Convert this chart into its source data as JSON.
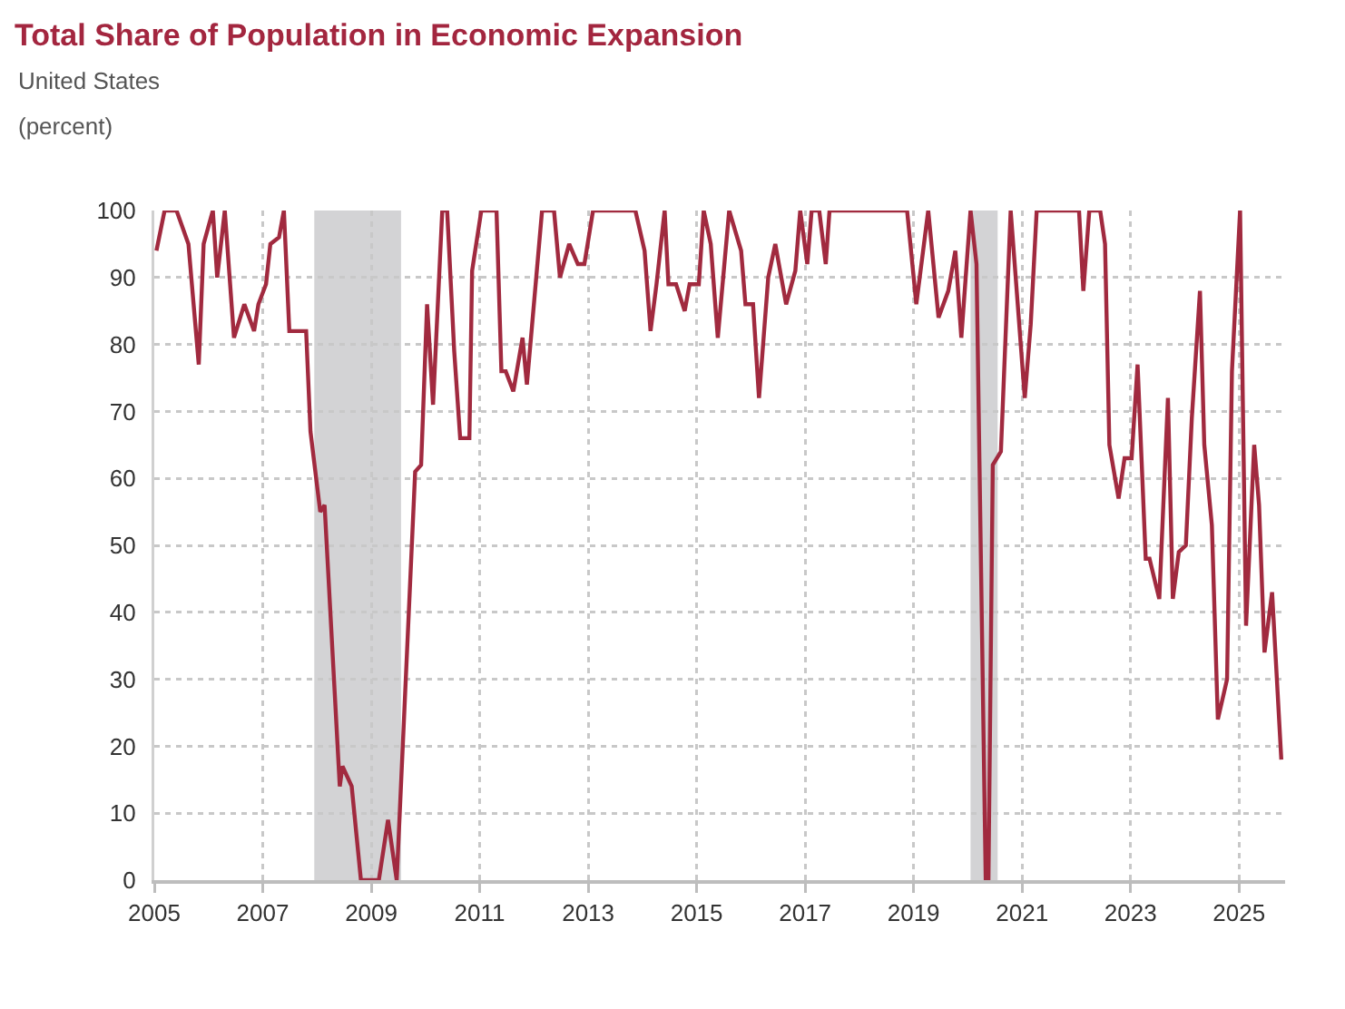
{
  "chart_data": {
    "type": "line",
    "title": "Total Share of Population in Economic Expansion",
    "subtitle": "United States",
    "ylabel": "(percent)",
    "x": [
      2005.04,
      2005.19,
      2005.41,
      2005.63,
      2005.82,
      2005.91,
      2006.08,
      2006.16,
      2006.3,
      2006.47,
      2006.66,
      2006.84,
      2006.92,
      2007.06,
      2007.14,
      2007.3,
      2007.39,
      2007.49,
      2007.8,
      2007.88,
      2008.06,
      2008.14,
      2008.42,
      2008.47,
      2008.64,
      2008.81,
      2009.14,
      2009.31,
      2009.47,
      2009.81,
      2009.92,
      2010.03,
      2010.14,
      2010.31,
      2010.4,
      2010.53,
      2010.64,
      2010.81,
      2010.86,
      2011.03,
      2011.31,
      2011.4,
      2011.48,
      2011.62,
      2011.79,
      2011.87,
      2012.15,
      2012.37,
      2012.48,
      2012.65,
      2012.81,
      2012.93,
      2013.09,
      2013.87,
      2014.04,
      2014.15,
      2014.26,
      2014.41,
      2014.48,
      2014.62,
      2014.78,
      2014.87,
      2015.04,
      2015.13,
      2015.26,
      2015.39,
      2015.6,
      2015.82,
      2015.9,
      2016.04,
      2016.15,
      2016.32,
      2016.45,
      2016.65,
      2016.82,
      2016.91,
      2017.04,
      2017.12,
      2017.26,
      2017.38,
      2017.45,
      2018.88,
      2019.05,
      2019.27,
      2019.46,
      2019.64,
      2019.77,
      2019.88,
      2020.05,
      2020.16,
      2020.33,
      2020.38,
      2020.46,
      2020.61,
      2020.79,
      2021.05,
      2021.16,
      2021.27,
      2022.05,
      2022.13,
      2022.24,
      2022.44,
      2022.53,
      2022.61,
      2022.78,
      2022.89,
      2023.02,
      2023.13,
      2023.28,
      2023.35,
      2023.53,
      2023.69,
      2023.78,
      2023.89,
      2024.02,
      2024.13,
      2024.28,
      2024.36,
      2024.5,
      2024.61,
      2024.78,
      2024.87,
      2025.02,
      2025.13,
      2025.28,
      2025.37,
      2025.47,
      2025.61,
      2025.78
    ],
    "series": [
      {
        "color": "#a12a3f",
        "values": [
          94,
          100,
          100,
          95,
          77,
          95,
          100,
          90,
          100,
          81,
          86,
          82,
          86,
          89,
          95,
          96,
          100,
          82,
          82,
          67,
          55,
          56,
          14,
          17,
          14,
          0,
          0,
          9,
          0,
          61,
          62,
          86,
          71,
          100,
          100,
          79,
          66,
          66,
          91,
          100,
          100,
          76,
          76,
          73,
          81,
          74,
          100,
          100,
          90,
          95,
          92,
          92,
          100,
          100,
          94,
          82,
          89,
          100,
          89,
          89,
          85,
          89,
          89,
          100,
          95,
          81,
          100,
          94,
          86,
          86,
          72,
          90,
          95,
          86,
          91,
          100,
          92,
          100,
          100,
          92,
          100,
          100,
          86,
          100,
          84,
          88,
          94,
          81,
          100,
          92,
          0,
          0,
          62,
          64,
          100,
          72,
          83,
          100,
          100,
          88,
          100,
          100,
          95,
          65,
          57,
          63,
          63,
          77,
          48,
          48,
          42,
          72,
          42,
          49,
          50,
          69,
          88,
          65,
          53,
          24,
          30,
          76,
          100,
          38,
          65,
          56,
          34,
          43,
          18
        ]
      }
    ],
    "xlim": [
      2005,
      2025.85
    ],
    "xticks": [
      2005,
      2007,
      2009,
      2011,
      2013,
      2015,
      2017,
      2019,
      2021,
      2023,
      2025
    ],
    "ylim": [
      0,
      100
    ],
    "yticks": [
      0,
      10,
      20,
      30,
      40,
      50,
      60,
      70,
      80,
      90,
      100
    ],
    "bands": [
      {
        "axis": "x",
        "from": 2007.95,
        "to": 2009.55,
        "color": "#d3d3d5"
      },
      {
        "axis": "x",
        "from": 2020.05,
        "to": 2020.55,
        "color": "#d3d3d5"
      }
    ],
    "grid": true
  }
}
